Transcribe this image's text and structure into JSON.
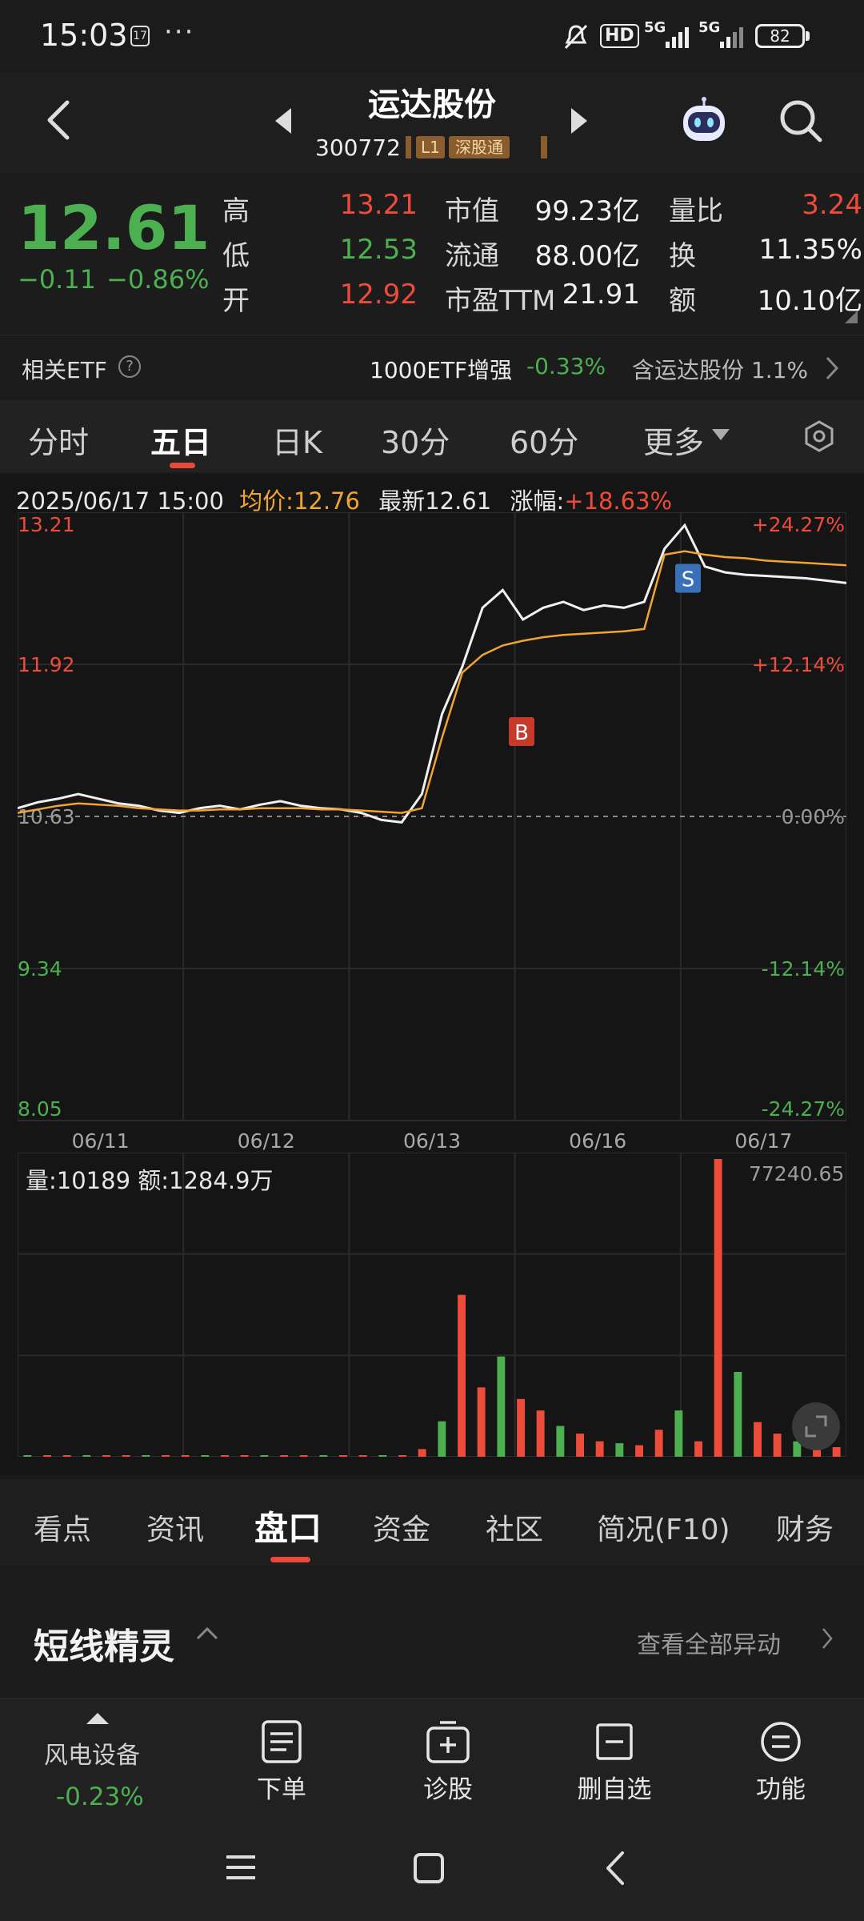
{
  "status_bar": {
    "time": "15:03",
    "notif_badge": "17",
    "dots": "···",
    "hd": "HD",
    "sig1": "5G",
    "sig2": "5G",
    "battery": "82"
  },
  "header": {
    "stock_name": "运达股份",
    "stock_code": "300772",
    "tags": [
      "L1",
      "深股通"
    ]
  },
  "quote": {
    "price": "12.61",
    "change": "−0.11",
    "change_pct": "−0.86%",
    "rows": [
      {
        "l1": "高",
        "v1": "13.21",
        "l2": "市值",
        "v2": "99.23亿",
        "l3": "量比",
        "v3": "3.24"
      },
      {
        "l1": "低",
        "v1": "12.53",
        "l2": "流通",
        "v2": "88.00亿",
        "l3": "换",
        "v3": "11.35%"
      },
      {
        "l1": "开",
        "v1": "12.92",
        "l2": "市盈TTM",
        "v2": "21.91",
        "l3": "额",
        "v3": "10.10亿"
      }
    ]
  },
  "etf": {
    "label": "相关ETF",
    "help": "?",
    "name": "1000ETF增强",
    "pct": "-0.33%",
    "holding": "含运达股份 1.1%"
  },
  "period_tabs": [
    "分时",
    "五日",
    "日K",
    "30分",
    "60分",
    "更多"
  ],
  "chart_info": {
    "datetime": "2025/06/17 15:00",
    "avg_label": "均价:12.76",
    "latest_label": "最新12.61",
    "zf_label": "涨幅:",
    "zf_value": "+18.63%"
  },
  "chart_data": {
    "type": "line",
    "x_labels": [
      "06/11",
      "06/12",
      "06/13",
      "06/16",
      "06/17"
    ],
    "y_left_ticks": [
      "13.21",
      "11.92",
      "10.63",
      "9.34",
      "8.05"
    ],
    "y_right_ticks": [
      "+24.27%",
      "+12.14%",
      "0.00%",
      "-12.14%",
      "-24.27%"
    ],
    "ylim": [
      8.05,
      13.21
    ],
    "prev_close": 10.63,
    "series": [
      {
        "values": [
          10.7,
          10.75,
          10.78,
          10.82,
          10.78,
          10.74,
          10.72,
          10.68,
          10.66,
          10.7,
          10.72,
          10.69,
          10.73,
          10.76,
          10.72,
          10.7,
          10.69,
          10.66,
          10.6,
          10.58,
          10.82,
          11.5,
          11.9,
          12.4,
          12.55,
          12.3,
          12.4,
          12.45,
          12.38,
          12.42,
          12.4,
          12.45,
          12.9,
          13.1,
          12.75,
          12.7,
          12.68,
          12.67,
          12.66,
          12.65,
          12.63,
          12.61
        ]
      },
      {
        "values": [
          10.66,
          10.69,
          10.72,
          10.74,
          10.73,
          10.72,
          10.7,
          10.69,
          10.68,
          10.68,
          10.69,
          10.69,
          10.7,
          10.7,
          10.7,
          10.69,
          10.69,
          10.68,
          10.67,
          10.66,
          10.7,
          11.3,
          11.85,
          12.0,
          12.08,
          12.12,
          12.15,
          12.17,
          12.18,
          12.19,
          12.2,
          12.22,
          12.85,
          12.88,
          12.85,
          12.83,
          12.82,
          12.8,
          12.79,
          12.78,
          12.77,
          12.76
        ]
      }
    ],
    "markers": [
      {
        "label": "B",
        "value": 11.35
      },
      {
        "label": "S",
        "value": 12.65
      }
    ],
    "volume": {
      "info": "量:10189  额:1284.9万",
      "max_label": "77240.65",
      "values": [
        150,
        250,
        120,
        300,
        200,
        100,
        140,
        90,
        120,
        80,
        220,
        110,
        300,
        160,
        180,
        150,
        90,
        170,
        100,
        140,
        2000,
        9200,
        42000,
        18000,
        26000,
        15000,
        12000,
        8000,
        6000,
        4000,
        3500,
        3000,
        7000,
        12000,
        4000,
        77240,
        22000,
        9000,
        6000,
        4000,
        3000,
        2500
      ]
    }
  },
  "info_tabs": [
    "看点",
    "资讯",
    "盘口",
    "资金",
    "社区",
    "简况(F10)",
    "财务"
  ],
  "spirit": {
    "title": "短线精灵",
    "all": "查看全部异动"
  },
  "action_bar": {
    "sector": "风电设备",
    "sector_pct": "-0.23%",
    "items": [
      "下单",
      "诊股",
      "删自选",
      "功能"
    ]
  },
  "colors": {
    "red": "#ee4c3b",
    "green": "#4caf50",
    "avg_line": "#f0a531",
    "price_line": "#f0f0f0",
    "accent": "#e84a3a"
  }
}
